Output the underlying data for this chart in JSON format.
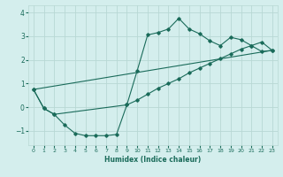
{
  "xlabel": "Humidex (Indice chaleur)",
  "bg_color": "#d4eeed",
  "grid_color": "#b8d8d4",
  "line_color": "#1a6b5a",
  "xlim": [
    -0.5,
    23.5
  ],
  "ylim": [
    -1.6,
    4.3
  ],
  "yticks": [
    -1,
    0,
    1,
    2,
    3,
    4
  ],
  "xticks": [
    0,
    1,
    2,
    3,
    4,
    5,
    6,
    7,
    8,
    9,
    10,
    11,
    12,
    13,
    14,
    15,
    16,
    17,
    18,
    19,
    20,
    21,
    22,
    23
  ],
  "series1_x": [
    0,
    1,
    2,
    3,
    4,
    5,
    6,
    7,
    8,
    9,
    10,
    11,
    12,
    13,
    14,
    15,
    16,
    17,
    18,
    19,
    20,
    21,
    22,
    23
  ],
  "series1_y": [
    0.75,
    -0.05,
    -0.3,
    -0.75,
    -1.1,
    -1.2,
    -1.2,
    -1.2,
    -1.15,
    0.1,
    1.55,
    3.05,
    3.15,
    3.3,
    3.75,
    3.3,
    3.1,
    2.8,
    2.6,
    2.95,
    2.85,
    2.6,
    2.35,
    2.4
  ],
  "series2_x": [
    0,
    1,
    2,
    9,
    10,
    11,
    12,
    13,
    14,
    15,
    16,
    17,
    18,
    19,
    20,
    21,
    22,
    23
  ],
  "series2_y": [
    0.75,
    -0.05,
    -0.3,
    0.1,
    0.3,
    0.55,
    0.8,
    1.0,
    1.2,
    1.45,
    1.65,
    1.85,
    2.05,
    2.25,
    2.45,
    2.6,
    2.75,
    2.4
  ],
  "series3_x": [
    0,
    23
  ],
  "series3_y": [
    0.75,
    2.4
  ]
}
